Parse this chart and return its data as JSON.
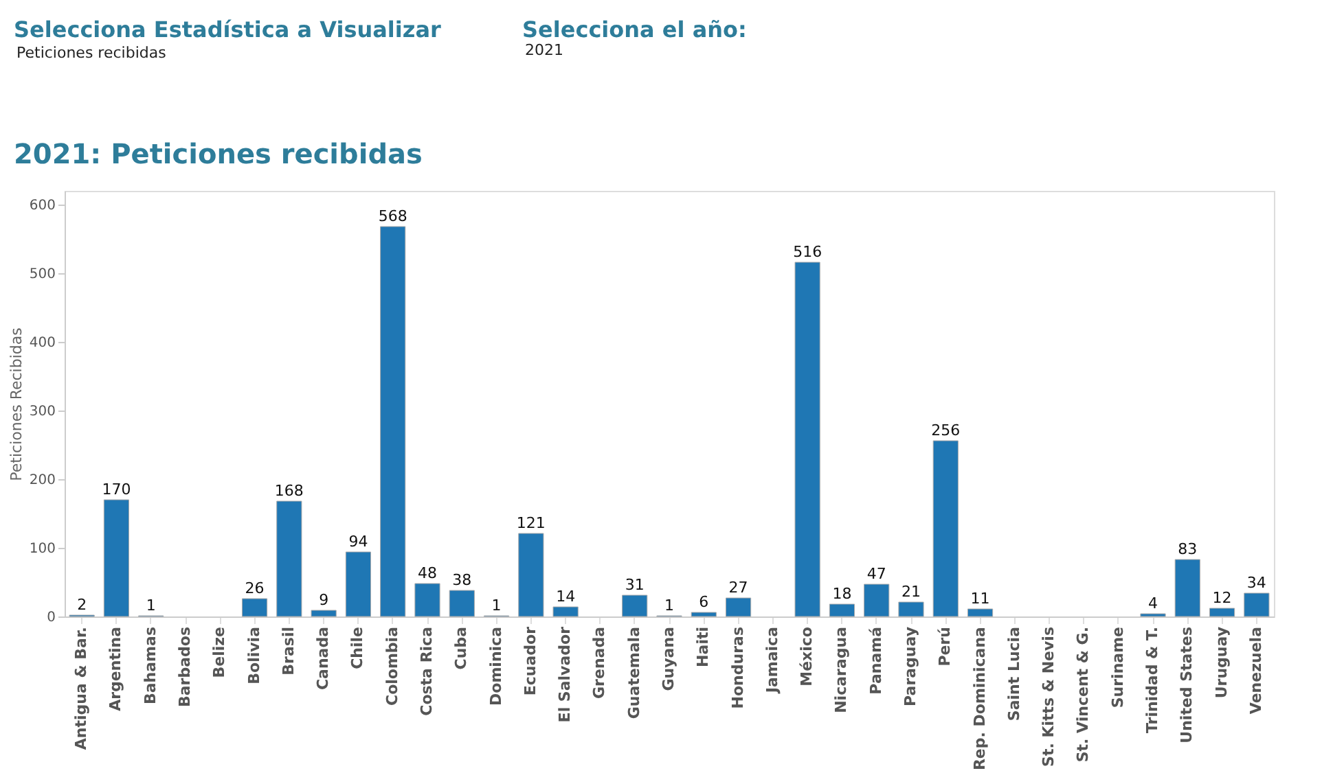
{
  "chart_data": {
    "type": "bar",
    "title": "2021: Peticiones recibidas",
    "ylabel": "Peticiones Recibidas",
    "annotations": [
      "Selecciona Estadística a Visualizar",
      "Peticiones recibidas",
      "Selecciona el año:",
      "2021"
    ],
    "categories": [
      "Antigua & Bar.",
      "Argentina",
      "Bahamas",
      "Barbados",
      "Belize",
      "Bolivia",
      "Brasil",
      "Canada",
      "Chile",
      "Colombia",
      "Costa Rica",
      "Cuba",
      "Dominica",
      "Ecuador",
      "El Salvador",
      "Grenada",
      "Guatemala",
      "Guyana",
      "Haiti",
      "Honduras",
      "Jamaica",
      "México",
      "Nicaragua",
      "Panamá",
      "Paraguay",
      "Perú",
      "Rep. Dominicana",
      "Saint Lucia",
      "St. Kitts & Nevis",
      "St. Vincent & G.",
      "Suriname",
      "Trinidad & T.",
      "United States",
      "Uruguay",
      "Venezuela"
    ],
    "values": [
      2,
      170,
      1,
      null,
      null,
      26,
      168,
      9,
      94,
      568,
      48,
      38,
      1,
      121,
      14,
      null,
      31,
      1,
      6,
      27,
      null,
      516,
      18,
      47,
      21,
      256,
      11,
      null,
      null,
      null,
      null,
      4,
      83,
      12,
      34
    ],
    "color": "#1f77b4",
    "ylim": [
      0,
      620
    ],
    "yticks": [
      0,
      100,
      200,
      300,
      400,
      500,
      600
    ],
    "data_labels": true,
    "grid": false
  }
}
